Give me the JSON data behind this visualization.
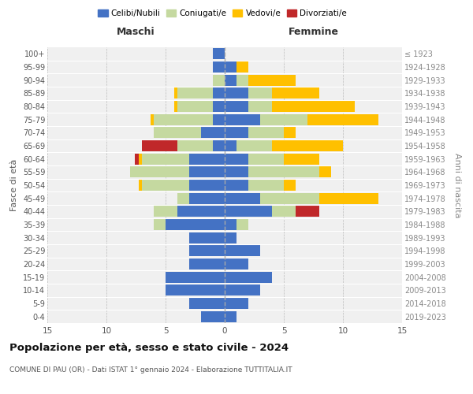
{
  "age_groups": [
    "0-4",
    "5-9",
    "10-14",
    "15-19",
    "20-24",
    "25-29",
    "30-34",
    "35-39",
    "40-44",
    "45-49",
    "50-54",
    "55-59",
    "60-64",
    "65-69",
    "70-74",
    "75-79",
    "80-84",
    "85-89",
    "90-94",
    "95-99",
    "100+"
  ],
  "birth_years": [
    "2019-2023",
    "2014-2018",
    "2009-2013",
    "2004-2008",
    "1999-2003",
    "1994-1998",
    "1989-1993",
    "1984-1988",
    "1979-1983",
    "1974-1978",
    "1969-1973",
    "1964-1968",
    "1959-1963",
    "1954-1958",
    "1949-1953",
    "1944-1948",
    "1939-1943",
    "1934-1938",
    "1929-1933",
    "1924-1928",
    "≤ 1923"
  ],
  "maschi": {
    "celibi": [
      2,
      3,
      5,
      5,
      3,
      3,
      3,
      5,
      4,
      3,
      3,
      3,
      3,
      1,
      2,
      1,
      1,
      1,
      0,
      1,
      1
    ],
    "coniugati": [
      0,
      0,
      0,
      0,
      0,
      0,
      0,
      1,
      2,
      1,
      4,
      5,
      4,
      3,
      4,
      5,
      3,
      3,
      1,
      0,
      0
    ],
    "vedovi": [
      0,
      0,
      0,
      0,
      0,
      0,
      0,
      0,
      0,
      0,
      0.3,
      0,
      0.3,
      0,
      0,
      0.3,
      0.3,
      0.3,
      0,
      0,
      0
    ],
    "divorziati": [
      0,
      0,
      0,
      0,
      0,
      0,
      0,
      0,
      0,
      0,
      0,
      0,
      0.3,
      3,
      0,
      0,
      0,
      0,
      0,
      0,
      0
    ]
  },
  "femmine": {
    "nubili": [
      1,
      2,
      3,
      4,
      2,
      3,
      1,
      1,
      4,
      3,
      2,
      2,
      2,
      1,
      2,
      3,
      2,
      2,
      1,
      1,
      0
    ],
    "coniugate": [
      0,
      0,
      0,
      0,
      0,
      0,
      0,
      1,
      2,
      5,
      3,
      6,
      3,
      3,
      3,
      4,
      2,
      2,
      1,
      0,
      0
    ],
    "vedove": [
      0,
      0,
      0,
      0,
      0,
      0,
      0,
      0,
      0,
      5,
      1,
      1,
      3,
      6,
      1,
      6,
      7,
      4,
      4,
      1,
      0
    ],
    "divorziate": [
      0,
      0,
      0,
      0,
      0,
      0,
      0,
      0,
      2,
      0,
      0,
      0,
      0,
      0,
      0,
      0,
      0,
      0,
      0,
      0,
      0
    ]
  },
  "colors": {
    "celibi": "#4472c4",
    "coniugati": "#c5d9a0",
    "vedovi": "#ffc000",
    "divorziati": "#c0282a"
  },
  "xlim": 15,
  "title": "Popolazione per età, sesso e stato civile - 2024",
  "subtitle": "COMUNE DI PAU (OR) - Dati ISTAT 1° gennaio 2024 - Elaborazione TUTTITALIA.IT",
  "xlabel_left": "Maschi",
  "xlabel_right": "Femmine",
  "ylabel_left": "Fasce di età",
  "ylabel_right": "Anni di nascita",
  "legend_labels": [
    "Celibi/Nubili",
    "Coniugati/e",
    "Vedovi/e",
    "Divorziati/e"
  ],
  "bg_color": "#ffffff",
  "plot_bg_color": "#f0f0f0",
  "grid_color": "#cccccc"
}
